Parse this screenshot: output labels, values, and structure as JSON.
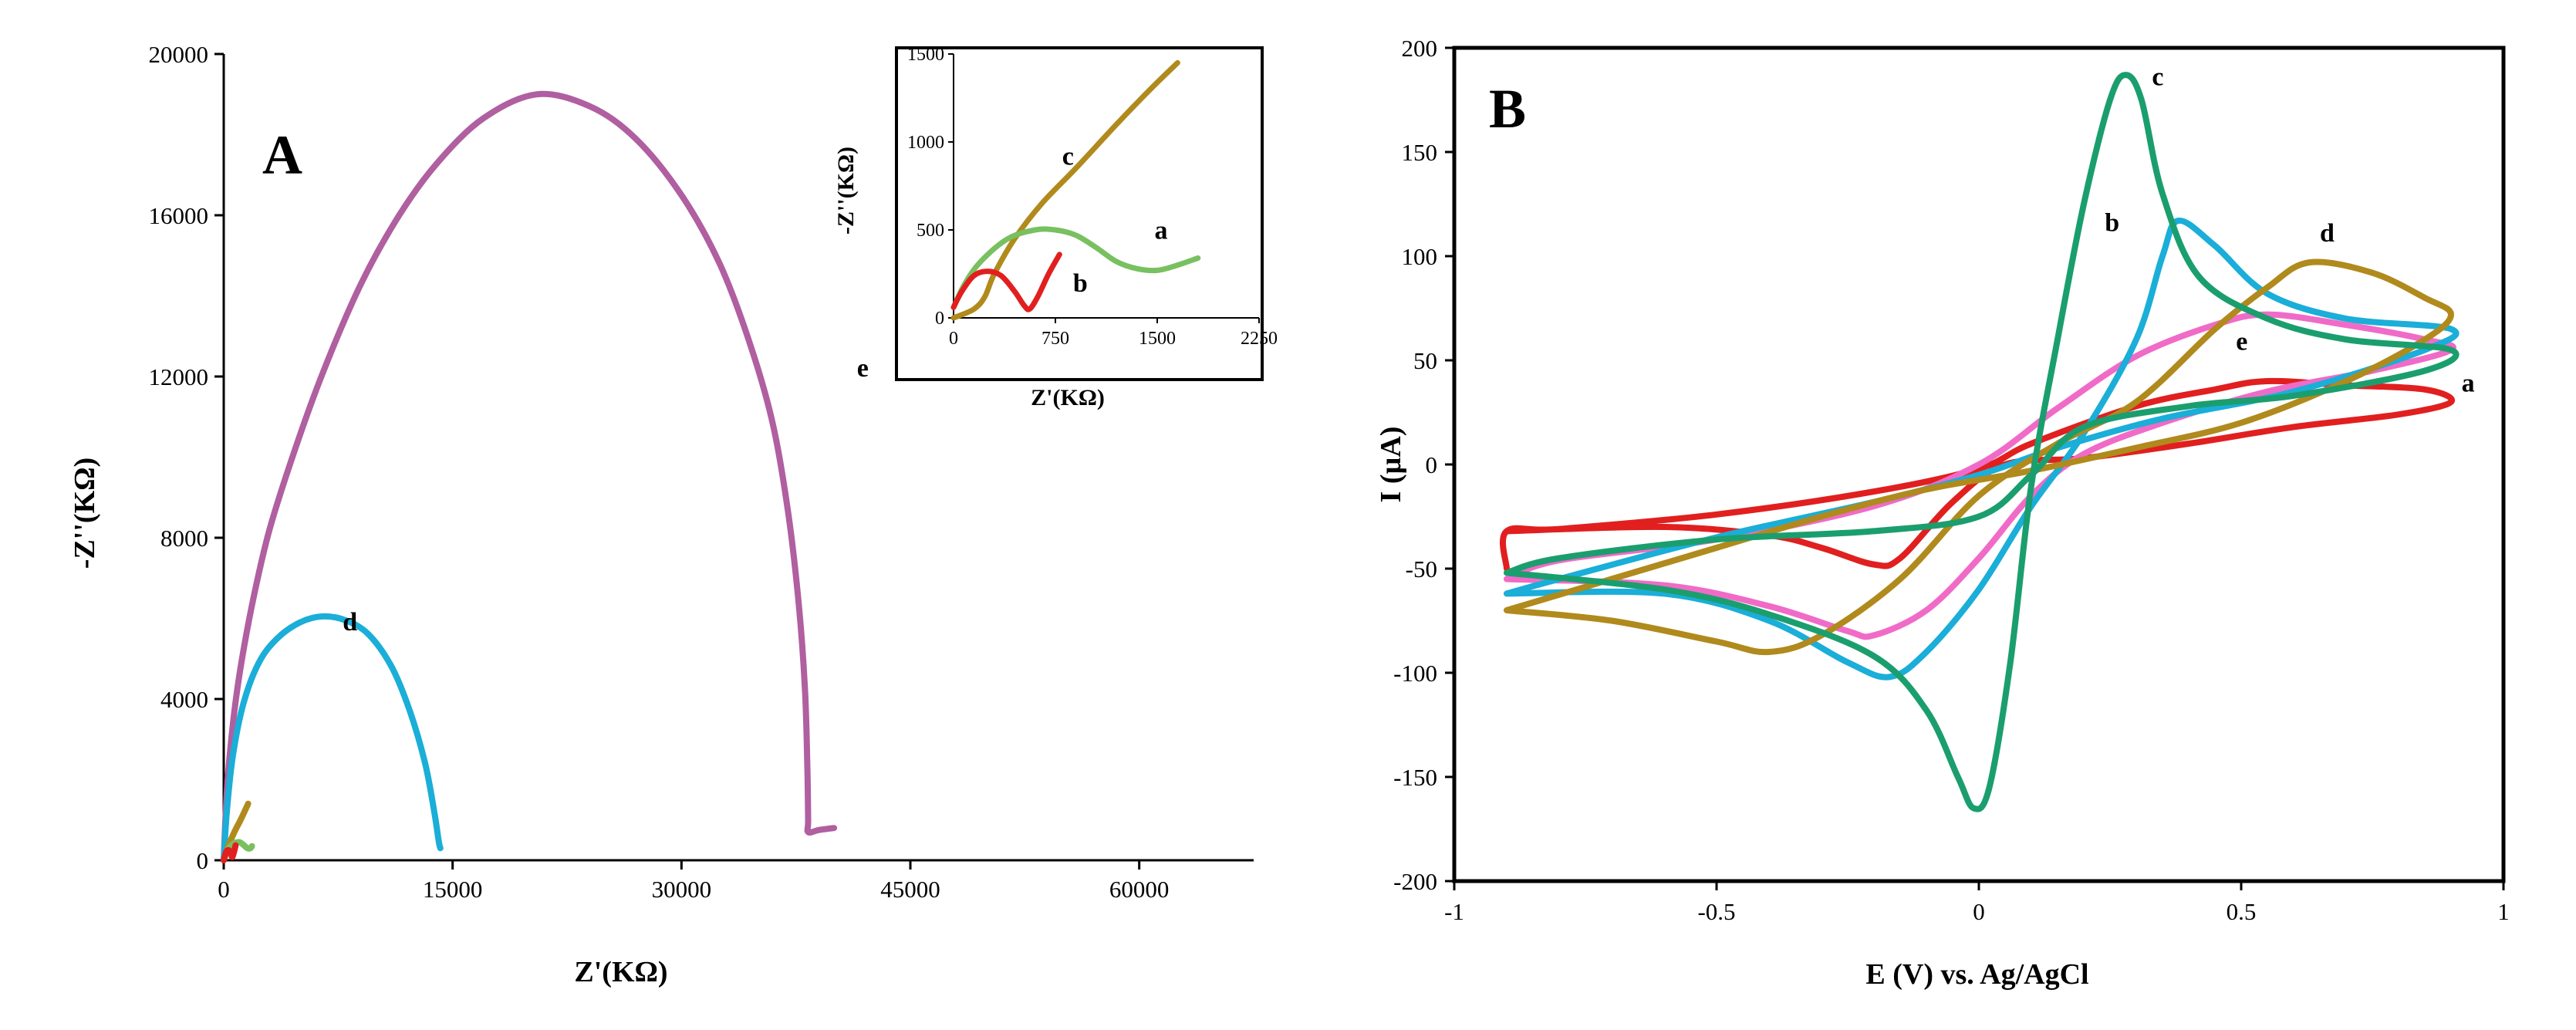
{
  "chart_data": [
    {
      "type": "line",
      "panel_label": "A",
      "title": "",
      "xlabel": "Z'(KΩ)",
      "ylabel": "-Z''(KΩ)",
      "xlim": [
        0,
        67500
      ],
      "ylim": [
        0,
        20000
      ],
      "x_ticks": [
        0,
        15000,
        30000,
        45000,
        60000
      ],
      "y_ticks": [
        0,
        4000,
        8000,
        12000,
        16000,
        20000
      ],
      "grid": false,
      "series": [
        {
          "name": "e",
          "color": "#b05fa0",
          "points": [
            [
              0,
              0
            ],
            [
              120,
              1100
            ],
            [
              300,
              2200
            ],
            [
              700,
              3700
            ],
            [
              1200,
              5000
            ],
            [
              2000,
              6600
            ],
            [
              3000,
              8200
            ],
            [
              4500,
              10000
            ],
            [
              6500,
              12100
            ],
            [
              9000,
              14300
            ],
            [
              11500,
              16000
            ],
            [
              14000,
              17300
            ],
            [
              17000,
              18400
            ],
            [
              20500,
              19000
            ],
            [
              24000,
              18700
            ],
            [
              27000,
              17900
            ],
            [
              30000,
              16500
            ],
            [
              32500,
              14800
            ],
            [
              34500,
              12800
            ],
            [
              36000,
              10800
            ],
            [
              37000,
              8600
            ],
            [
              37700,
              6300
            ],
            [
              38100,
              4200
            ],
            [
              38250,
              2300
            ],
            [
              38300,
              1000
            ],
            [
              38300,
              700
            ],
            [
              39000,
              750
            ],
            [
              40000,
              800
            ]
          ]
        },
        {
          "name": "d",
          "color": "#1aaed8",
          "points": [
            [
              0,
              0
            ],
            [
              200,
              1200
            ],
            [
              600,
              2600
            ],
            [
              1300,
              3900
            ],
            [
              2300,
              4900
            ],
            [
              3500,
              5500
            ],
            [
              5000,
              5900
            ],
            [
              6500,
              6050
            ],
            [
              8000,
              5950
            ],
            [
              9500,
              5600
            ],
            [
              11000,
              4800
            ],
            [
              12200,
              3700
            ],
            [
              13200,
              2400
            ],
            [
              13800,
              1200
            ],
            [
              14100,
              450
            ],
            [
              14200,
              300
            ]
          ]
        },
        {
          "name": "c",
          "color": "#b08a1c",
          "points": [
            [
              0,
              0
            ],
            [
              300,
              350
            ],
            [
              700,
              700
            ],
            [
              1100,
              1000
            ],
            [
              1600,
              1400
            ]
          ]
        },
        {
          "name": "a",
          "color": "#78c060",
          "points": [
            [
              0,
              0
            ],
            [
              250,
              250
            ],
            [
              600,
              400
            ],
            [
              1000,
              450
            ],
            [
              1300,
              380
            ],
            [
              1550,
              300
            ],
            [
              1750,
              300
            ],
            [
              1850,
              350
            ]
          ]
        },
        {
          "name": "b",
          "color": "#e11f1f",
          "points": [
            [
              0,
              0
            ],
            [
              150,
              200
            ],
            [
              300,
              250
            ],
            [
              450,
              190
            ],
            [
              550,
              80
            ],
            [
              650,
              180
            ],
            [
              780,
              370
            ]
          ]
        }
      ],
      "inset": {
        "type": "line",
        "xlabel": "Z'(KΩ)",
        "ylabel": "-Z''(KΩ)",
        "xlim": [
          0,
          2250
        ],
        "ylim": [
          0,
          1500
        ],
        "x_ticks": [
          0,
          750,
          1500,
          2250
        ],
        "y_ticks": [
          0,
          500,
          1000,
          1500
        ],
        "series": [
          {
            "name": "c",
            "color": "#b08a1c",
            "points": [
              [
                0,
                0
              ],
              [
                150,
                50
              ],
              [
                230,
                120
              ],
              [
                300,
                250
              ],
              [
                450,
                450
              ],
              [
                650,
                650
              ],
              [
                900,
                850
              ],
              [
                1200,
                1100
              ],
              [
                1450,
                1300
              ],
              [
                1650,
                1450
              ]
            ]
          },
          {
            "name": "a",
            "color": "#78c060",
            "points": [
              [
                0,
                60
              ],
              [
                80,
                190
              ],
              [
                200,
                320
              ],
              [
                400,
                450
              ],
              [
                600,
                500
              ],
              [
                750,
                500
              ],
              [
                900,
                470
              ],
              [
                1050,
                400
              ],
              [
                1200,
                320
              ],
              [
                1350,
                280
              ],
              [
                1500,
                270
              ],
              [
                1650,
                300
              ],
              [
                1800,
                340
              ]
            ]
          },
          {
            "name": "b",
            "color": "#e11f1f",
            "points": [
              [
                0,
                60
              ],
              [
                60,
                150
              ],
              [
                150,
                240
              ],
              [
                250,
                265
              ],
              [
                350,
                240
              ],
              [
                450,
                150
              ],
              [
                520,
                70
              ],
              [
                560,
                50
              ],
              [
                620,
                120
              ],
              [
                700,
                250
              ],
              [
                780,
                360
              ]
            ]
          }
        ]
      }
    },
    {
      "type": "line",
      "panel_label": "B",
      "title": "",
      "xlabel": "E (V) vs. Ag/AgCl",
      "ylabel": "I (µA)",
      "xlim": [
        -1,
        1
      ],
      "ylim": [
        -200,
        200
      ],
      "x_ticks": [
        -1,
        -0.5,
        0,
        0.5,
        1
      ],
      "x_tick_labels": [
        "-1",
        "-0.5",
        "0",
        "0.5",
        "1"
      ],
      "y_ticks": [
        -200,
        -150,
        -100,
        -50,
        0,
        50,
        100,
        150,
        200
      ],
      "grid": false,
      "series": [
        {
          "name": "a",
          "color": "#e11f1f",
          "points": [
            [
              -0.9,
              -32
            ],
            [
              -0.6,
              -30
            ],
            [
              -0.4,
              -34
            ],
            [
              -0.3,
              -40
            ],
            [
              -0.2,
              -48
            ],
            [
              -0.15,
              -45
            ],
            [
              -0.05,
              -18
            ],
            [
              0.05,
              0
            ],
            [
              0.2,
              3
            ],
            [
              0.4,
              10
            ],
            [
              0.6,
              18
            ],
            [
              0.8,
              24
            ],
            [
              0.9,
              30
            ],
            [
              0.85,
              36
            ],
            [
              0.7,
              38
            ],
            [
              0.55,
              40
            ],
            [
              0.45,
              36
            ],
            [
              0.3,
              28
            ],
            [
              0.1,
              10
            ],
            [
              0.0,
              -2
            ],
            [
              -0.2,
              -13
            ],
            [
              -0.5,
              -24
            ],
            [
              -0.8,
              -31
            ],
            [
              -0.9,
              -32
            ],
            [
              -0.9,
              -50
            ]
          ]
        },
        {
          "name": "e",
          "color": "#f06bc8",
          "points": [
            [
              -0.9,
              -55
            ],
            [
              -0.6,
              -58
            ],
            [
              -0.4,
              -68
            ],
            [
              -0.25,
              -80
            ],
            [
              -0.2,
              -82
            ],
            [
              -0.1,
              -70
            ],
            [
              0.0,
              -45
            ],
            [
              0.1,
              -15
            ],
            [
              0.2,
              5
            ],
            [
              0.35,
              20
            ],
            [
              0.55,
              35
            ],
            [
              0.75,
              45
            ],
            [
              0.9,
              55
            ],
            [
              0.85,
              60
            ],
            [
              0.7,
              67
            ],
            [
              0.55,
              72
            ],
            [
              0.45,
              67
            ],
            [
              0.3,
              52
            ],
            [
              0.15,
              27
            ],
            [
              0.0,
              0
            ],
            [
              -0.2,
              -20
            ],
            [
              -0.5,
              -36
            ],
            [
              -0.8,
              -46
            ],
            [
              -0.9,
              -55
            ]
          ]
        },
        {
          "name": "b",
          "color": "#1aaed8",
          "points": [
            [
              -0.9,
              -62
            ],
            [
              -0.6,
              -62
            ],
            [
              -0.4,
              -75
            ],
            [
              -0.25,
              -95
            ],
            [
              -0.17,
              -102
            ],
            [
              -0.1,
              -90
            ],
            [
              0.0,
              -60
            ],
            [
              0.1,
              -20
            ],
            [
              0.2,
              15
            ],
            [
              0.3,
              60
            ],
            [
              0.35,
              100
            ],
            [
              0.38,
              117
            ],
            [
              0.45,
              105
            ],
            [
              0.55,
              82
            ],
            [
              0.7,
              70
            ],
            [
              0.9,
              65
            ],
            [
              0.85,
              55
            ],
            [
              0.6,
              35
            ],
            [
              0.35,
              22
            ],
            [
              0.15,
              8
            ],
            [
              0.0,
              -5
            ],
            [
              -0.2,
              -18
            ],
            [
              -0.5,
              -35
            ],
            [
              -0.8,
              -55
            ],
            [
              -0.9,
              -62
            ]
          ]
        },
        {
          "name": "d",
          "color": "#b08a1c",
          "points": [
            [
              -0.9,
              -70
            ],
            [
              -0.7,
              -75
            ],
            [
              -0.5,
              -85
            ],
            [
              -0.4,
              -90
            ],
            [
              -0.3,
              -82
            ],
            [
              -0.15,
              -55
            ],
            [
              0.0,
              -15
            ],
            [
              0.15,
              10
            ],
            [
              0.3,
              30
            ],
            [
              0.45,
              65
            ],
            [
              0.55,
              85
            ],
            [
              0.63,
              97
            ],
            [
              0.75,
              92
            ],
            [
              0.85,
              80
            ],
            [
              0.9,
              72
            ],
            [
              0.85,
              60
            ],
            [
              0.7,
              40
            ],
            [
              0.5,
              20
            ],
            [
              0.3,
              8
            ],
            [
              0.1,
              -3
            ],
            [
              -0.1,
              -12
            ],
            [
              -0.3,
              -25
            ],
            [
              -0.5,
              -40
            ],
            [
              -0.7,
              -55
            ],
            [
              -0.9,
              -70
            ]
          ]
        },
        {
          "name": "c",
          "color": "#1b9e6e",
          "points": [
            [
              -0.9,
              -52
            ],
            [
              -0.6,
              -60
            ],
            [
              -0.4,
              -72
            ],
            [
              -0.2,
              -92
            ],
            [
              -0.1,
              -118
            ],
            [
              -0.04,
              -150
            ],
            [
              -0.01,
              -165
            ],
            [
              0.02,
              -155
            ],
            [
              0.06,
              -95
            ],
            [
              0.1,
              -10
            ],
            [
              0.15,
              60
            ],
            [
              0.2,
              125
            ],
            [
              0.25,
              175
            ],
            [
              0.28,
              187
            ],
            [
              0.31,
              175
            ],
            [
              0.35,
              130
            ],
            [
              0.42,
              90
            ],
            [
              0.55,
              70
            ],
            [
              0.7,
              60
            ],
            [
              0.9,
              55
            ],
            [
              0.85,
              45
            ],
            [
              0.6,
              33
            ],
            [
              0.4,
              28
            ],
            [
              0.2,
              18
            ],
            [
              0.1,
              -5
            ],
            [
              0.0,
              -25
            ],
            [
              -0.2,
              -32
            ],
            [
              -0.5,
              -36
            ],
            [
              -0.8,
              -45
            ],
            [
              -0.9,
              -52
            ]
          ]
        }
      ]
    }
  ]
}
